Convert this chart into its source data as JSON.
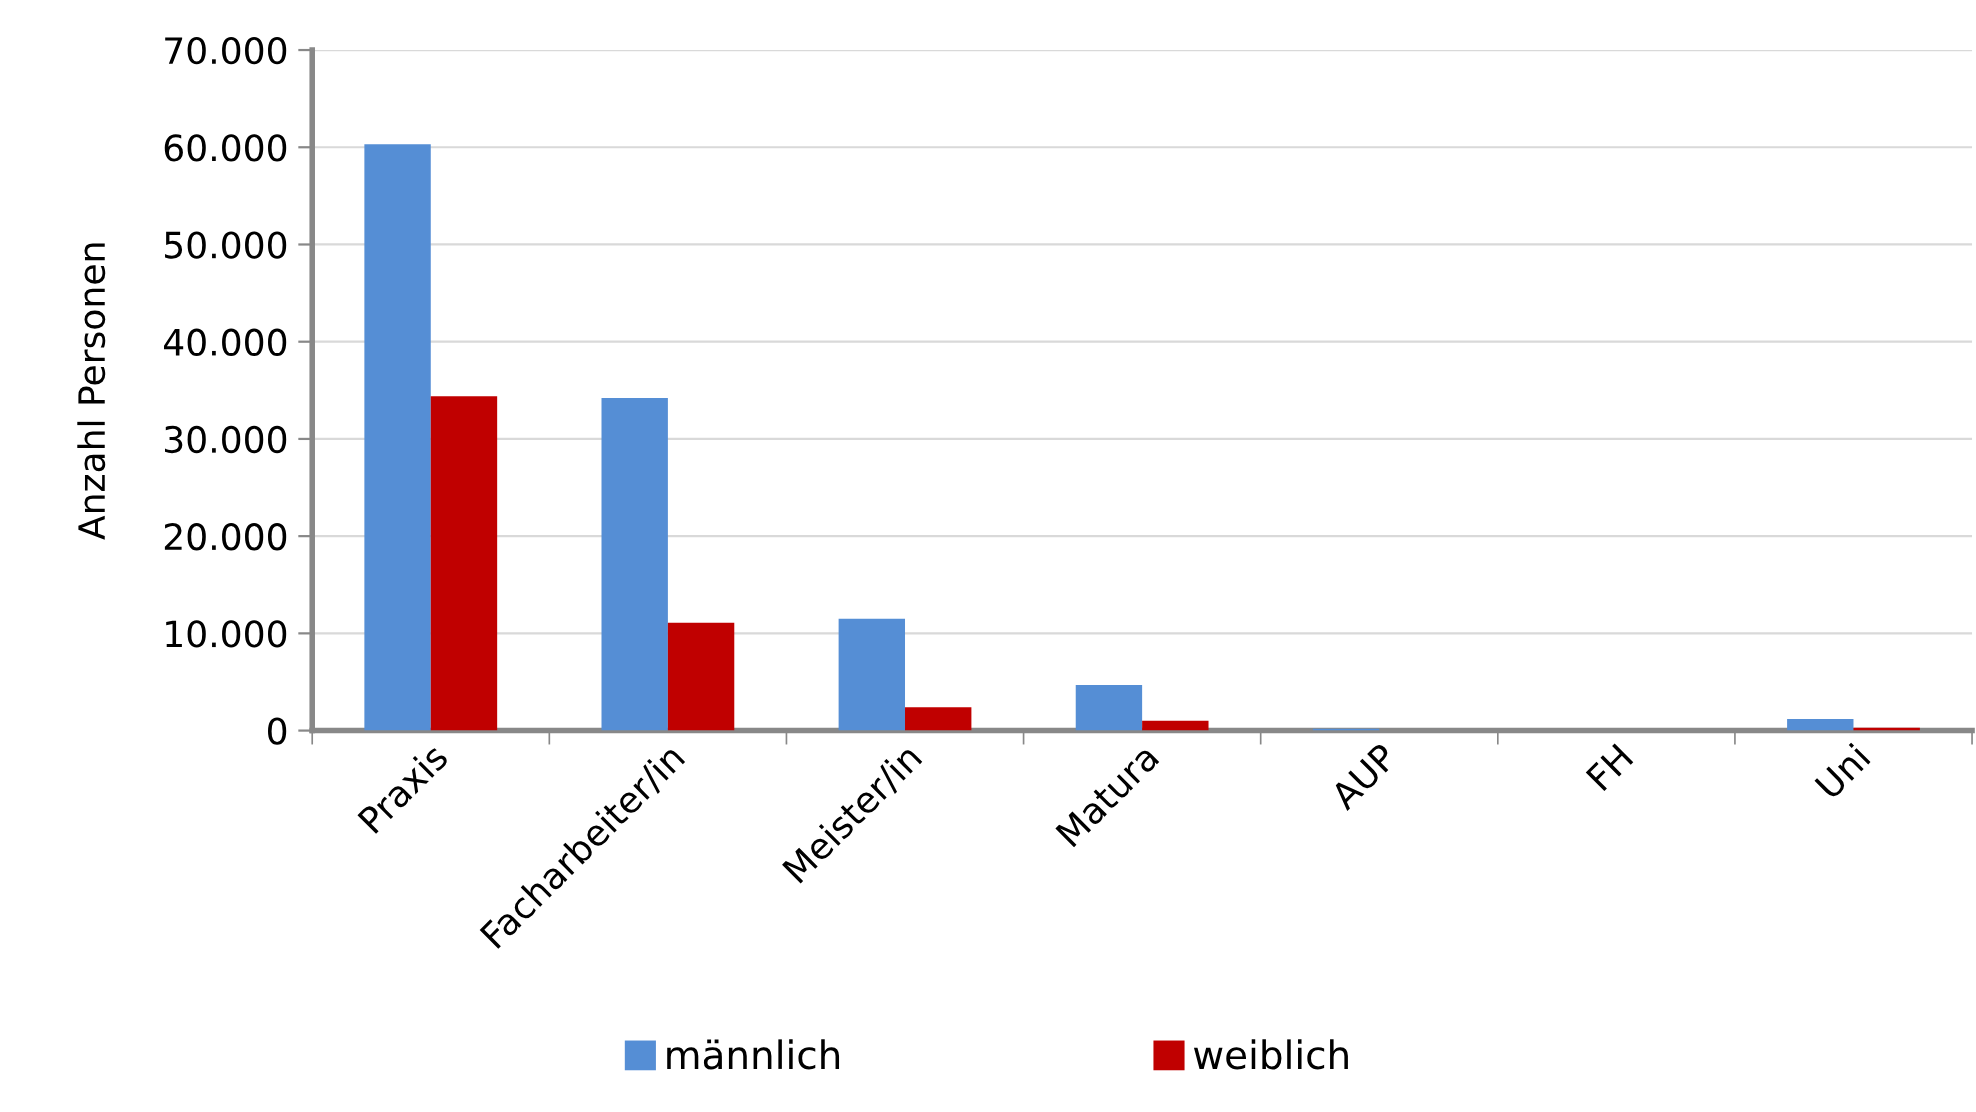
{
  "chart_data": {
    "type": "bar",
    "ylabel": "Anzahl Personen",
    "categories": [
      "Praxis",
      "Facharbeiter/in",
      "Meister/in",
      "Matura",
      "AUP",
      "FH",
      "Uni"
    ],
    "series": [
      {
        "name": "männlich",
        "color": "#558ed5",
        "values": [
          60300,
          34200,
          11500,
          4700,
          200,
          null,
          1200
        ]
      },
      {
        "name": "weiblich",
        "color": "#c00000",
        "values": [
          34400,
          11100,
          2400,
          1000,
          null,
          null,
          300
        ]
      }
    ],
    "ylim": [
      0,
      70000
    ],
    "yticks": [
      {
        "value": 0,
        "label": "0"
      },
      {
        "value": 10000,
        "label": "10.000"
      },
      {
        "value": 20000,
        "label": "20.000"
      },
      {
        "value": 30000,
        "label": "30.000"
      },
      {
        "value": 40000,
        "label": "40.000"
      },
      {
        "value": 50000,
        "label": "50.000"
      },
      {
        "value": 60000,
        "label": "60.000"
      },
      {
        "value": 70000,
        "label": "70.000"
      }
    ],
    "grid": "y",
    "legend": "bottom"
  }
}
